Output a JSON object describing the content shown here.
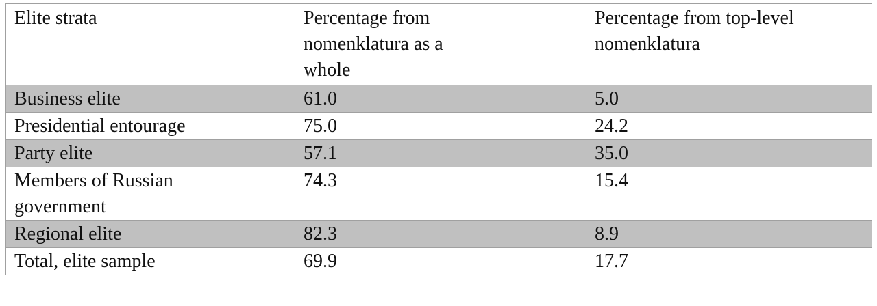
{
  "table": {
    "header": [
      "Elite strata",
      "Percentage from nomenklatura as a whole",
      "Percentage from top-level nomenklatura"
    ],
    "rows": [
      [
        "Business elite",
        "61.0",
        "5.0"
      ],
      [
        "Presidential entourage",
        "75.0",
        "24.2"
      ],
      [
        "Party elite",
        "57.1",
        "35.0"
      ],
      [
        "Members of Russian government",
        "74.3",
        "15.4"
      ],
      [
        "Regional elite",
        "82.3",
        "8.9"
      ],
      [
        "Total, elite sample",
        "69.9",
        "17.7"
      ]
    ]
  }
}
